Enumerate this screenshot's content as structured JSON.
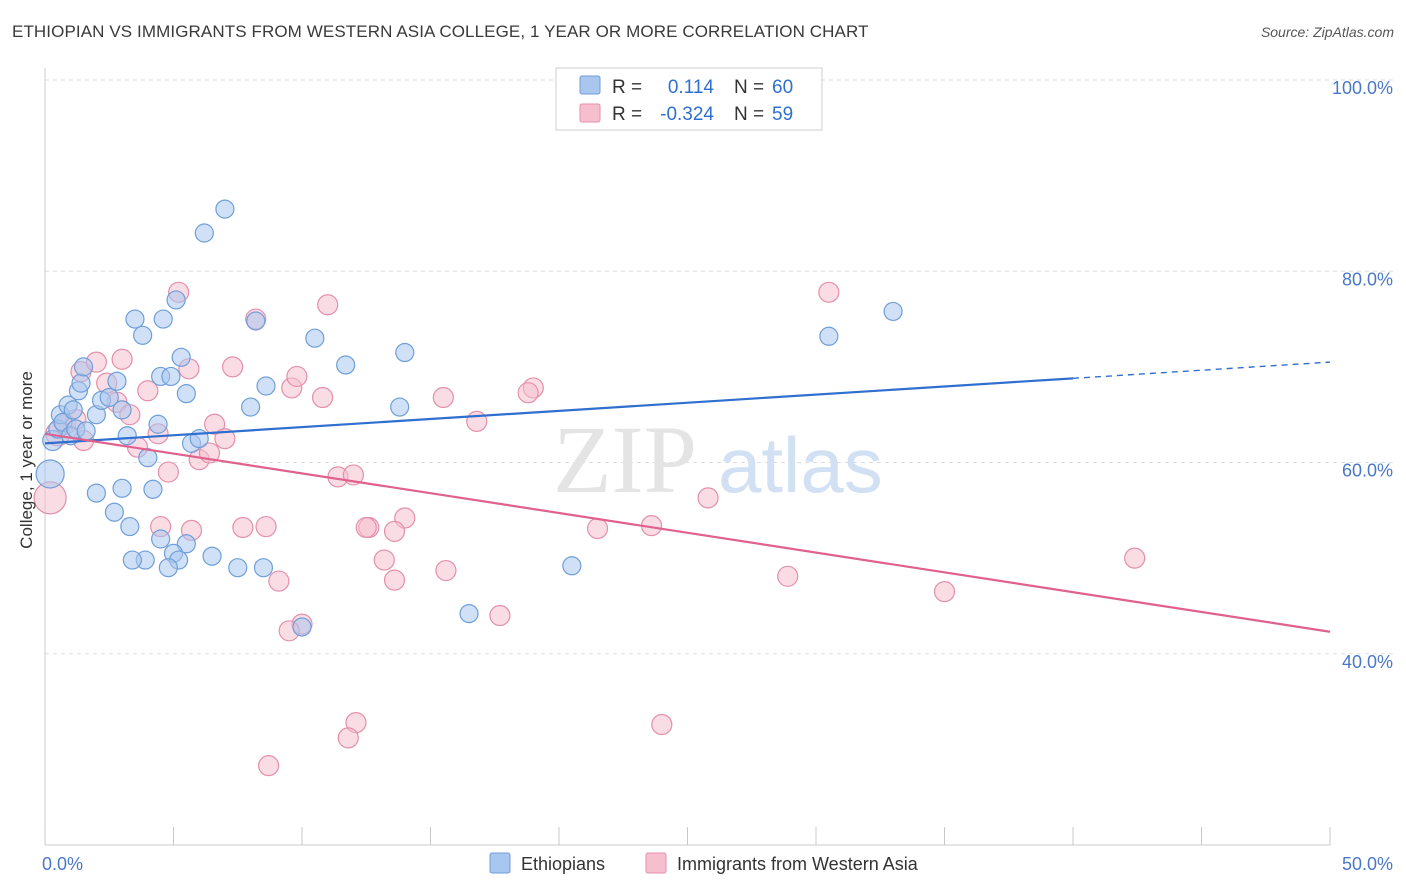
{
  "title": "ETHIOPIAN VS IMMIGRANTS FROM WESTERN ASIA COLLEGE, 1 YEAR OR MORE CORRELATION CHART",
  "source": "Source: ZipAtlas.com",
  "watermark": {
    "zip": "ZIP",
    "atlas": "atlas"
  },
  "colors": {
    "blue_fill": "#a9c6ee",
    "blue_stroke": "#6f9fd8",
    "blue_line": "#2f6fcf",
    "pink_fill": "#f6bfd0",
    "pink_stroke": "#e48fab",
    "pink_line": "#e0608e",
    "tick_text": "#4a78c8"
  },
  "legend": {
    "rows": [
      {
        "r_label": "R =",
        "r_value": "0.114",
        "n_label": "N =",
        "n_value": "60"
      },
      {
        "r_label": "R =",
        "r_value": "-0.324",
        "n_label": "N =",
        "n_value": "59"
      }
    ]
  },
  "chart_data": {
    "type": "scatter",
    "title": "ETHIOPIAN VS IMMIGRANTS FROM WESTERN ASIA COLLEGE, 1 YEAR OR MORE CORRELATION CHART",
    "xlabel": "",
    "ylabel": "College, 1 year or more",
    "xlim": [
      0,
      50
    ],
    "ylim": [
      20,
      100
    ],
    "x_tick_labels": [
      "0.0%",
      "50.0%"
    ],
    "y_ticks": [
      40,
      60,
      80,
      100
    ],
    "y_tick_labels": [
      "40.0%",
      "60.0%",
      "80.0%",
      "100.0%"
    ],
    "grid": true,
    "legend_position": "top-center",
    "series": [
      {
        "name": "Ethiopians",
        "color": "#a9c6ee",
        "r": 0.114,
        "n": 60,
        "trend": {
          "x": [
            0,
            40,
            50
          ],
          "y": [
            62.0,
            68.8,
            70.5
          ],
          "dashed_from_x": 40
        },
        "points": [
          [
            0.2,
            58.8,
            14
          ],
          [
            0.3,
            62.3,
            10
          ],
          [
            0.5,
            63.5,
            9
          ],
          [
            0.6,
            65.0,
            9
          ],
          [
            0.7,
            64.2,
            9
          ],
          [
            0.9,
            66.0,
            9
          ],
          [
            1.0,
            62.8,
            9
          ],
          [
            1.1,
            65.5,
            9
          ],
          [
            1.2,
            63.5,
            9
          ],
          [
            1.3,
            67.5,
            9
          ],
          [
            1.4,
            68.3,
            9
          ],
          [
            1.5,
            70.0,
            9
          ],
          [
            2.0,
            65.0,
            9
          ],
          [
            2.2,
            66.5,
            9
          ],
          [
            2.5,
            66.8,
            9
          ],
          [
            2.8,
            68.5,
            9
          ],
          [
            3.0,
            65.5,
            9
          ],
          [
            3.2,
            62.8,
            9
          ],
          [
            3.5,
            75.0,
            9
          ],
          [
            3.8,
            73.3,
            9
          ],
          [
            4.0,
            60.5,
            9
          ],
          [
            4.5,
            69.0,
            9
          ],
          [
            4.6,
            75.0,
            9
          ],
          [
            4.9,
            69.0,
            9
          ],
          [
            5.1,
            77.0,
            9
          ],
          [
            5.3,
            71.0,
            9
          ],
          [
            5.5,
            67.2,
            9
          ],
          [
            5.7,
            62.0,
            9
          ],
          [
            6.0,
            62.5,
            9
          ],
          [
            7.0,
            86.5,
            9
          ],
          [
            6.2,
            84.0,
            9
          ],
          [
            8.0,
            65.8,
            9
          ],
          [
            8.2,
            74.8,
            9
          ],
          [
            8.6,
            68.0,
            9
          ],
          [
            10.5,
            73.0,
            9
          ],
          [
            11.7,
            70.2,
            9
          ],
          [
            14.0,
            71.5,
            9
          ],
          [
            13.8,
            65.8,
            9
          ],
          [
            4.5,
            52.0,
            9
          ],
          [
            5.5,
            51.5,
            9
          ],
          [
            6.5,
            50.2,
            9
          ],
          [
            7.5,
            49.0,
            9
          ],
          [
            2.0,
            56.8,
            9
          ],
          [
            3.0,
            57.3,
            9
          ],
          [
            3.3,
            53.3,
            9
          ],
          [
            4.2,
            57.2,
            9
          ],
          [
            5.0,
            50.5,
            9
          ],
          [
            5.2,
            49.8,
            9
          ],
          [
            3.9,
            49.8,
            9
          ],
          [
            3.4,
            49.8,
            9
          ],
          [
            4.8,
            49.0,
            9
          ],
          [
            8.5,
            49.0,
            9
          ],
          [
            10.0,
            42.8,
            9
          ],
          [
            16.5,
            44.2,
            9
          ],
          [
            20.5,
            49.2,
            9
          ],
          [
            30.5,
            73.2,
            9
          ],
          [
            33.0,
            75.8,
            9
          ],
          [
            2.7,
            54.8,
            9
          ],
          [
            4.4,
            64.0,
            9
          ],
          [
            1.6,
            63.3,
            9
          ]
        ]
      },
      {
        "name": "Immigrants from Western Asia",
        "color": "#f6bfd0",
        "r": -0.324,
        "n": 59,
        "trend": {
          "x": [
            0,
            50
          ],
          "y": [
            63.0,
            42.3
          ]
        },
        "points": [
          [
            0.2,
            56.3,
            16
          ],
          [
            0.5,
            63.0,
            12
          ],
          [
            0.8,
            64.0,
            10
          ],
          [
            1.2,
            64.5,
            10
          ],
          [
            1.4,
            69.5,
            10
          ],
          [
            2.0,
            70.5,
            10
          ],
          [
            2.4,
            68.3,
            10
          ],
          [
            2.8,
            66.3,
            10
          ],
          [
            3.0,
            70.8,
            10
          ],
          [
            3.3,
            65.0,
            10
          ],
          [
            3.6,
            61.6,
            10
          ],
          [
            4.0,
            67.5,
            10
          ],
          [
            4.4,
            63.0,
            10
          ],
          [
            4.8,
            59.0,
            10
          ],
          [
            5.2,
            77.8,
            10
          ],
          [
            5.6,
            69.8,
            10
          ],
          [
            6.0,
            60.3,
            10
          ],
          [
            6.4,
            61.0,
            10
          ],
          [
            6.6,
            64.0,
            10
          ],
          [
            7.0,
            62.5,
            10
          ],
          [
            7.3,
            70.0,
            10
          ],
          [
            8.2,
            75.0,
            10
          ],
          [
            9.6,
            67.8,
            10
          ],
          [
            9.8,
            69.0,
            10
          ],
          [
            11.0,
            76.5,
            10
          ],
          [
            10.8,
            66.8,
            10
          ],
          [
            11.4,
            58.5,
            10
          ],
          [
            12.0,
            58.7,
            10
          ],
          [
            12.6,
            53.2,
            10
          ],
          [
            14.0,
            54.2,
            10
          ],
          [
            15.5,
            66.8,
            10
          ],
          [
            16.8,
            64.3,
            10
          ],
          [
            19.0,
            67.8,
            10
          ],
          [
            18.8,
            67.3,
            10
          ],
          [
            4.5,
            53.3,
            10
          ],
          [
            5.7,
            52.9,
            10
          ],
          [
            7.7,
            53.2,
            10
          ],
          [
            8.6,
            53.3,
            10
          ],
          [
            12.5,
            53.2,
            10
          ],
          [
            13.6,
            52.8,
            10
          ],
          [
            13.2,
            49.8,
            10
          ],
          [
            13.6,
            47.7,
            10
          ],
          [
            15.6,
            48.7,
            10
          ],
          [
            9.1,
            47.6,
            10
          ],
          [
            10.0,
            43.1,
            10
          ],
          [
            9.5,
            42.4,
            10
          ],
          [
            17.7,
            44.0,
            10
          ],
          [
            23.6,
            53.4,
            10
          ],
          [
            21.5,
            53.1,
            10
          ],
          [
            25.8,
            56.3,
            10
          ],
          [
            28.9,
            48.1,
            10
          ],
          [
            30.5,
            77.8,
            10
          ],
          [
            35.0,
            46.5,
            10
          ],
          [
            42.4,
            50.0,
            10
          ],
          [
            12.1,
            32.8,
            10
          ],
          [
            11.8,
            31.2,
            10
          ],
          [
            24.0,
            32.6,
            10
          ],
          [
            8.7,
            28.3,
            10
          ],
          [
            1.5,
            62.3,
            10
          ]
        ]
      }
    ]
  }
}
